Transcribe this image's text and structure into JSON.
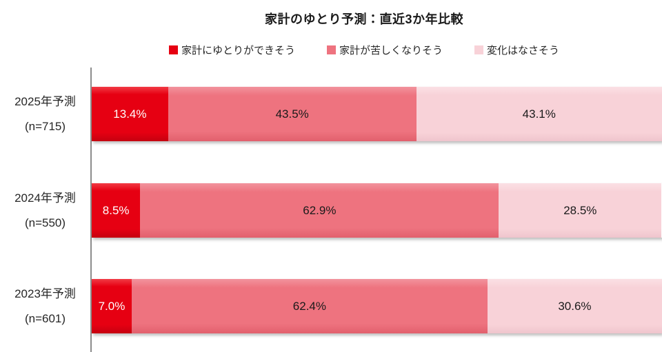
{
  "title": "家計のゆとり予測：直近3か年比較",
  "colors": {
    "series1_red": "#e60012",
    "series2_rose": "#ee737f",
    "series3_light_pink": "#f8d2d8",
    "axis_line": "#8c8c8c",
    "title_text": "#1a1a1a",
    "label_text": "#262626"
  },
  "legend": {
    "items": [
      {
        "label": "家計にゆとりができそう",
        "color": "#e60012"
      },
      {
        "label": "家計が苦しくなりそう",
        "color": "#ee737f"
      },
      {
        "label": "変化はなさそう",
        "color": "#f8d2d8"
      }
    ]
  },
  "rows": [
    {
      "category_line1": "2025年予測",
      "category_line2": "(n=715)",
      "values": [
        13.4,
        43.5,
        43.1
      ],
      "labels": [
        "13.4%",
        "43.5%",
        "43.1%"
      ]
    },
    {
      "category_line1": "2024年予測",
      "category_line2": "(n=550)",
      "values": [
        8.5,
        62.9,
        28.5
      ],
      "labels": [
        "8.5%",
        "62.9%",
        "28.5%"
      ]
    },
    {
      "category_line1": "2023年予測",
      "category_line2": "(n=601)",
      "values": [
        7.0,
        62.4,
        30.6
      ],
      "labels": [
        "7.0%",
        "62.4%",
        "30.6%"
      ]
    }
  ],
  "chart_data": {
    "type": "bar",
    "orientation": "horizontal",
    "stacked": true,
    "title": "家計のゆとり予測：直近3か年比較",
    "categories": [
      "2025年予測 (n=715)",
      "2024年予測 (n=550)",
      "2023年予測 (n=601)"
    ],
    "series": [
      {
        "name": "家計にゆとりができそう",
        "color": "#e60012",
        "values": [
          13.4,
          8.5,
          7.0
        ]
      },
      {
        "name": "家計が苦しくなりそう",
        "color": "#ee737f",
        "values": [
          43.5,
          62.9,
          62.4
        ]
      },
      {
        "name": "変化はなさそう",
        "color": "#f8d2d8",
        "values": [
          43.1,
          28.5,
          30.6
        ]
      }
    ],
    "value_unit": "%",
    "xlim": [
      0,
      100
    ],
    "legend_position": "top",
    "grid": false,
    "data_labels": "centered-in-segment"
  }
}
